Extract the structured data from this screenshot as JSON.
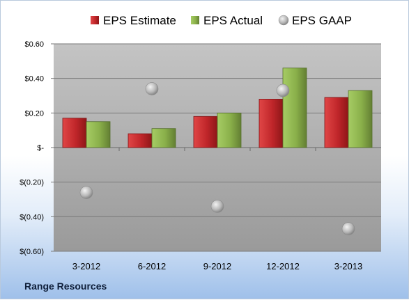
{
  "chart_data": {
    "type": "bar",
    "categories": [
      "3-2012",
      "6-2012",
      "9-2012",
      "12-2012",
      "3-2013"
    ],
    "series": [
      {
        "name": "EPS Estimate",
        "kind": "bar",
        "color": "#c0262a",
        "values": [
          0.17,
          0.08,
          0.18,
          0.28,
          0.29
        ]
      },
      {
        "name": "EPS Actual",
        "kind": "bar",
        "color": "#8ab04a",
        "values": [
          0.15,
          0.11,
          0.2,
          0.46,
          0.33
        ]
      },
      {
        "name": "EPS GAAP",
        "kind": "marker",
        "color": "#b8b8b8",
        "values": [
          -0.26,
          0.34,
          -0.34,
          0.33,
          -0.47
        ]
      }
    ],
    "yticks": [
      0.6,
      0.4,
      0.2,
      0,
      -0.2,
      -0.4,
      -0.6
    ],
    "ytick_labels": [
      "$0.60",
      "$0.40",
      "$0.20",
      "$-",
      "$(0.20)",
      "$(0.40)",
      "$(0.60)"
    ],
    "ylim": [
      -0.6,
      0.6
    ],
    "grid": true,
    "legend_position": "top"
  },
  "footer": {
    "company": "Range Resources"
  }
}
